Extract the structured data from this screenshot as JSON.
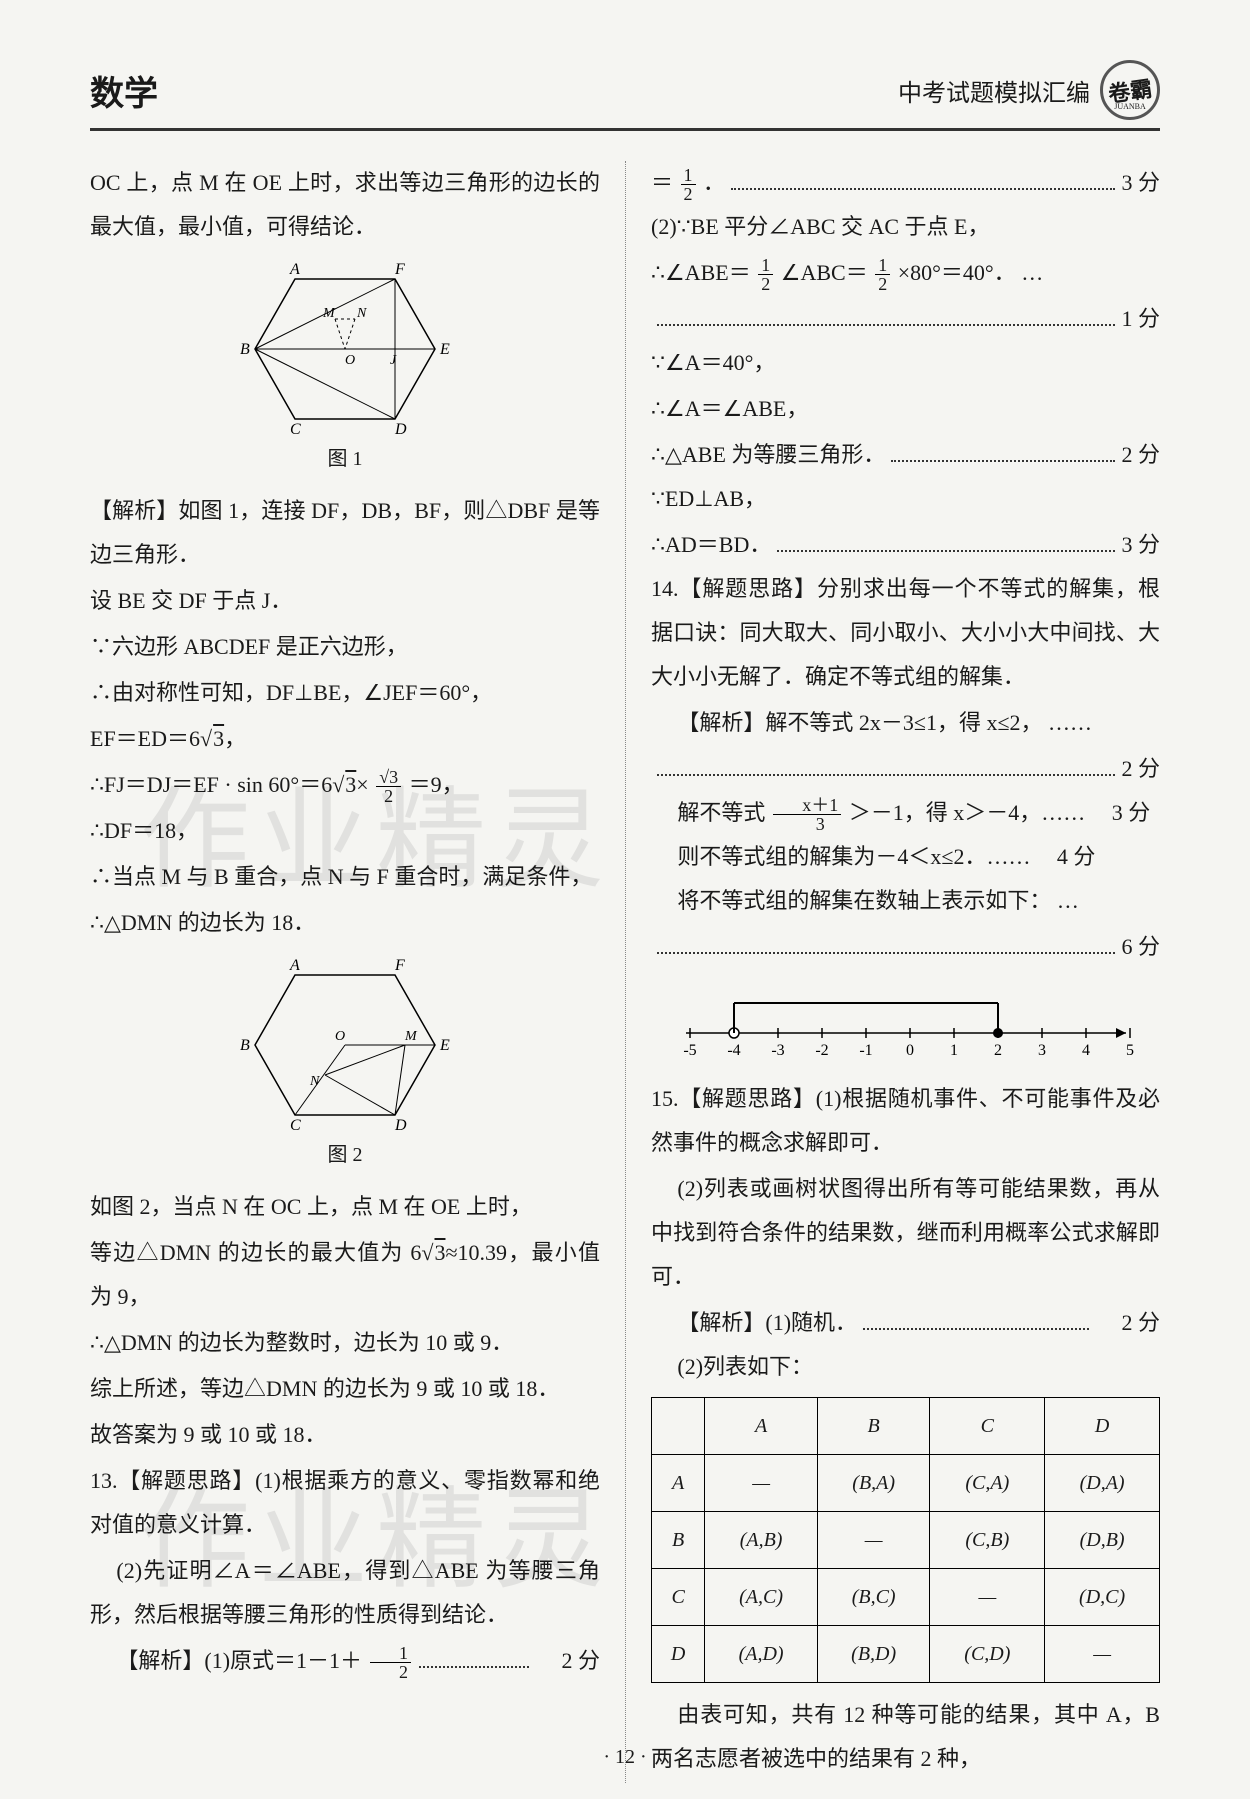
{
  "header": {
    "subject": "数学",
    "right_title": "中考试题模拟汇编",
    "logo_main": "卷霸",
    "logo_sub": "JUANBA"
  },
  "watermark": "作业精灵",
  "footer": "· 12 ·",
  "left": {
    "l1": "OC 上，点 M 在 OE 上时，求出等边三角形的边长的最大值，最小值，可得结论．",
    "fig1_caption": "图 1",
    "l2": "【解析】如图 1，连接 DF，DB，BF，则△DBF 是等边三角形．",
    "l3": "设 BE 交 DF 于点 J．",
    "l4": "∵六边形 ABCDEF 是正六边形，",
    "l5": "∴由对称性可知，DF⊥BE，∠JEF＝60°，",
    "l6_a": "EF＝ED＝6",
    "l6_b": "3",
    "l6_c": "，",
    "l7_a": "∴FJ＝DJ＝EF · sin 60°＝6",
    "l7_b": "3",
    "l7_c": "×",
    "l7_num": "√3",
    "l7_den": "2",
    "l7_d": "＝9，",
    "l8": "∴DF＝18，",
    "l9": "∴当点 M 与 B 重合，点 N 与 F 重合时，满足条件，",
    "l10": "∴△DMN 的边长为 18．",
    "fig2_caption": "图 2",
    "l11": "如图 2，当点 N 在 OC 上，点 M 在 OE 上时，",
    "l12_a": "等边△DMN 的边长的最大值为 6",
    "l12_b": "3",
    "l12_c": "≈10.39，最小值为 9，",
    "l13": "∴△DMN 的边长为整数时，边长为 10 或 9．",
    "l14": "综上所述，等边△DMN 的边长为 9 或 10 或 18．",
    "l15": "故答案为 9 或 10 或 18．",
    "q13_a": "13.【解题思路】(1)根据乘方的意义、零指数幂和绝对值的意义计算．",
    "q13_b": "(2)先证明∠A＝∠ABE，得到△ABE 为等腰三角形，然后根据等腰三角形的性质得到结论．",
    "q13_c_text": "【解析】(1)原式＝1－1＋",
    "q13_c_num": "1",
    "q13_c_den": "2",
    "q13_c_score": "2 分"
  },
  "right": {
    "r1_eq": "＝",
    "r1_num": "1",
    "r1_den": "2",
    "r1_dot": "．",
    "r1_score": "3 分",
    "r2": "(2)∵BE 平分∠ABC 交 AC 于点 E，",
    "r3_a": "∴∠ABE＝",
    "r3_num1": "1",
    "r3_den1": "2",
    "r3_b": "∠ABC＝",
    "r3_num2": "1",
    "r3_den2": "2",
    "r3_c": "×80°＝40°．  …",
    "r3_score": "1 分",
    "r4": "∵∠A＝40°，",
    "r5": "∴∠A＝∠ABE，",
    "r6_text": "∴△ABE 为等腰三角形．",
    "r6_score": "2 分",
    "r7": "∵ED⊥AB，",
    "r8_text": "∴AD＝BD．",
    "r8_score": "3 分",
    "q14_a": "14.【解题思路】分别求出每一个不等式的解集，根据口诀：同大取大、同小取小、大小小大中间找、大大小小无解了．确定不等式组的解集．",
    "q14_b_text": "【解析】解不等式 2x－3≤1，得 x≤2，  ……",
    "q14_b_score": "2 分",
    "q14_c_a": "解不等式",
    "q14_c_num": "x＋1",
    "q14_c_den": "3",
    "q14_c_b": "＞－1，得 x＞－4，……",
    "q14_c_score": "3 分",
    "q14_d_text": "则不等式组的解集为－4＜x≤2．……",
    "q14_d_score": "4 分",
    "q14_e": "将不等式组的解集在数轴上表示如下：  …",
    "q14_e_score": "6 分",
    "numline_ticks": [
      "-5",
      "-4",
      "-3",
      "-2",
      "-1",
      "0",
      "1",
      "2",
      "3",
      "4",
      "5"
    ],
    "q15_a": "15.【解题思路】(1)根据随机事件、不可能事件及必然事件的概念求解即可．",
    "q15_b": "(2)列表或画树状图得出所有等可能结果数，再从中找到符合条件的结果数，继而利用概率公式求解即可．",
    "q15_c_text": "【解析】(1)随机．",
    "q15_c_score": "2 分",
    "q15_d": "(2)列表如下：",
    "table": {
      "headers": [
        "",
        "A",
        "B",
        "C",
        "D"
      ],
      "rows": [
        [
          "A",
          "—",
          "(B,A)",
          "(C,A)",
          "(D,A)"
        ],
        [
          "B",
          "(A,B)",
          "—",
          "(C,B)",
          "(D,B)"
        ],
        [
          "C",
          "(A,C)",
          "(B,C)",
          "—",
          "(D,C)"
        ],
        [
          "D",
          "(A,D)",
          "(B,D)",
          "(C,D)",
          "—"
        ]
      ]
    },
    "q15_e": "由表可知，共有 12 种等可能的结果，其中 A，B 两名志愿者被选中的结果有 2 种，"
  },
  "fig1": {
    "labels": {
      "A": "A",
      "B": "B",
      "C": "C",
      "D": "D",
      "E": "E",
      "F": "F",
      "M": "M",
      "N": "N",
      "O": "O",
      "J": "J"
    }
  },
  "fig2": {
    "labels": {
      "A": "A",
      "B": "B",
      "C": "C",
      "D": "D",
      "E": "E",
      "F": "F",
      "M": "M",
      "N": "N",
      "O": "O"
    }
  },
  "colors": {
    "text": "#1a1a1a",
    "bg": "#f5f5f2",
    "rule": "#333333"
  }
}
